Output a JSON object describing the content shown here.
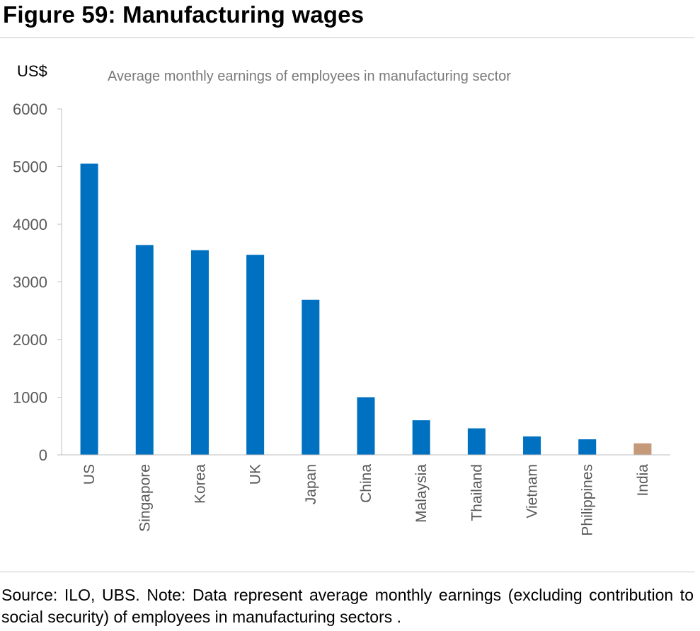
{
  "title": "Figure 59: Manufacturing wages",
  "footnote": "Source: ILO, UBS. Note: Data represent average monthly earnings (excluding contribution to social security) of employees in manufacturing sectors .",
  "chart_data": {
    "type": "bar",
    "title": "Average monthly earnings of employees in manufacturing sector",
    "ylabel": "US$",
    "xlabel": "",
    "ylim": [
      0,
      6000
    ],
    "yticks": [
      0,
      1000,
      2000,
      3000,
      4000,
      5000,
      6000
    ],
    "categories": [
      "US",
      "Singapore",
      "Korea",
      "UK",
      "Japan",
      "China",
      "Malaysia",
      "Thailand",
      "Vietnam",
      "Philippines",
      "India"
    ],
    "values": [
      5050,
      3640,
      3550,
      3470,
      2690,
      1000,
      600,
      460,
      320,
      270,
      200
    ],
    "colors": [
      "#0070c0",
      "#0070c0",
      "#0070c0",
      "#0070c0",
      "#0070c0",
      "#0070c0",
      "#0070c0",
      "#0070c0",
      "#0070c0",
      "#0070c0",
      "#c49a7a"
    ],
    "grid": false,
    "legend": "none"
  }
}
